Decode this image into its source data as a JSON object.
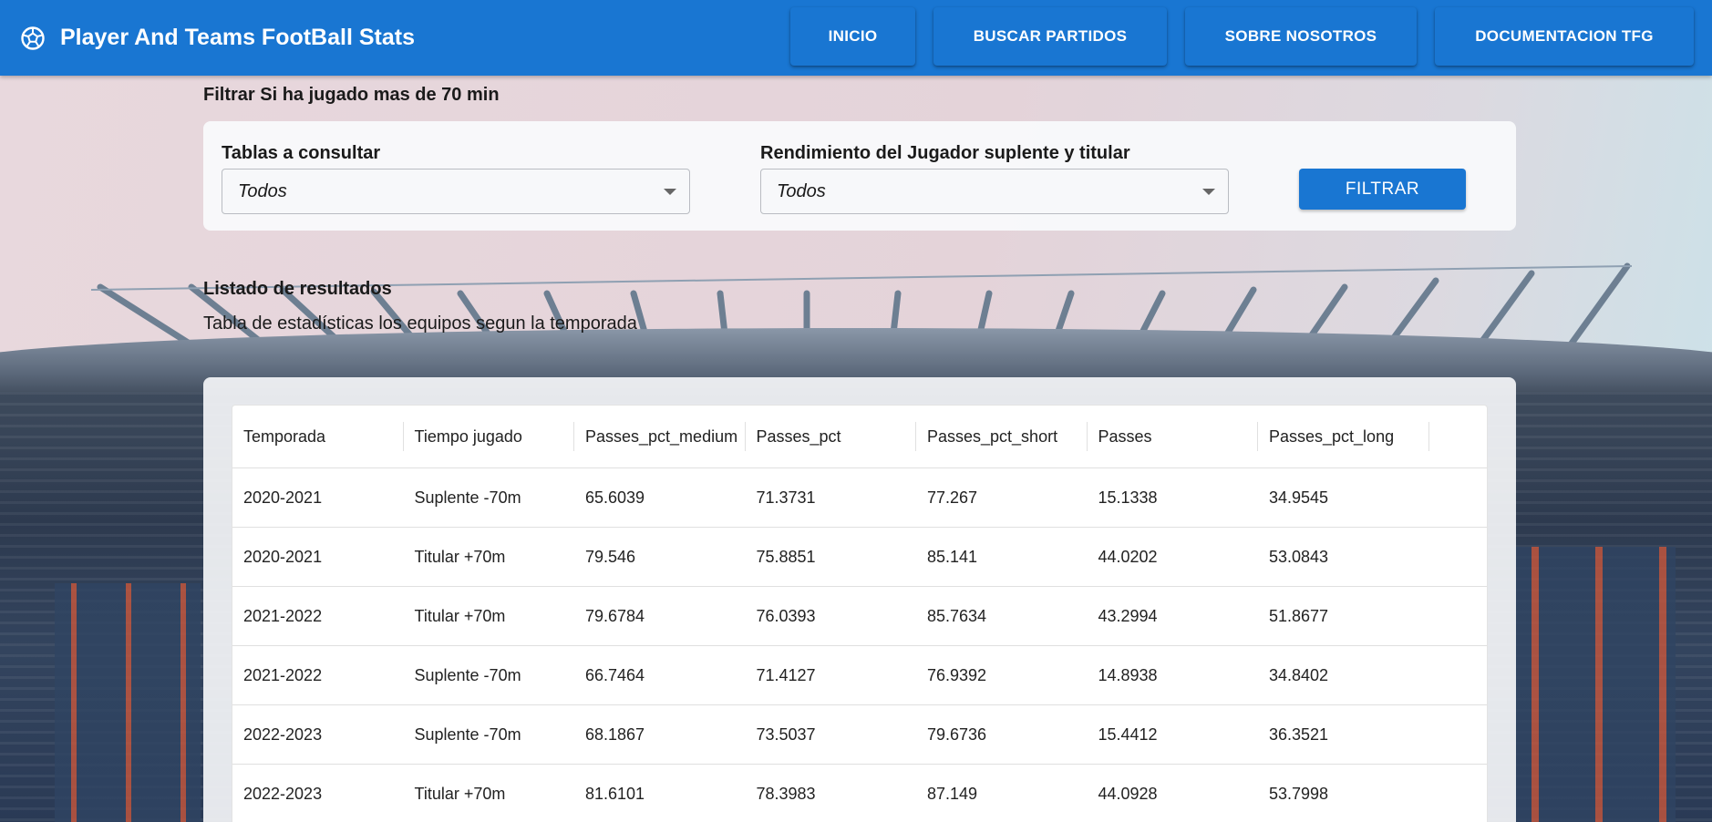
{
  "header": {
    "title": "Player And Teams FootBall Stats",
    "logo_icon": "soccer-ball-icon",
    "nav": [
      {
        "label": "INICIO"
      },
      {
        "label": "BUSCAR PARTIDOS"
      },
      {
        "label": "SOBRE NOSOTROS"
      },
      {
        "label": "DOCUMENTACION TFG"
      }
    ],
    "color": "#1976d2"
  },
  "filters": {
    "title": "Filtrar Si ha jugado mas de 70 min",
    "tables": {
      "label": "Tablas a consultar",
      "value": "Todos"
    },
    "performance": {
      "label": "Rendimiento del Jugador suplente y titular",
      "value": "Todos"
    },
    "button_label": "FILTRAR"
  },
  "results": {
    "title": "Listado de resultados",
    "subtitle": "Tabla de estadísticas los equipos segun la temporada",
    "columns": [
      "Temporada",
      "Tiempo jugado",
      "Passes_pct_medium",
      "Passes_pct",
      "Passes_pct_short",
      "Passes",
      "Passes_pct_long"
    ],
    "rows": [
      [
        "2020-2021",
        "Suplente -70m",
        "65.6039",
        "71.3731",
        "77.267",
        "15.1338",
        "34.9545"
      ],
      [
        "2020-2021",
        "Titular +70m",
        "79.546",
        "75.8851",
        "85.141",
        "44.0202",
        "53.0843"
      ],
      [
        "2021-2022",
        "Titular +70m",
        "79.6784",
        "76.0393",
        "85.7634",
        "43.2994",
        "51.8677"
      ],
      [
        "2021-2022",
        "Suplente -70m",
        "66.7464",
        "71.4127",
        "76.9392",
        "14.8938",
        "34.8402"
      ],
      [
        "2022-2023",
        "Suplente -70m",
        "68.1867",
        "73.5037",
        "79.6736",
        "15.4412",
        "36.3521"
      ],
      [
        "2022-2023",
        "Titular +70m",
        "81.6101",
        "78.3983",
        "87.149",
        "44.0928",
        "53.7998"
      ]
    ]
  }
}
